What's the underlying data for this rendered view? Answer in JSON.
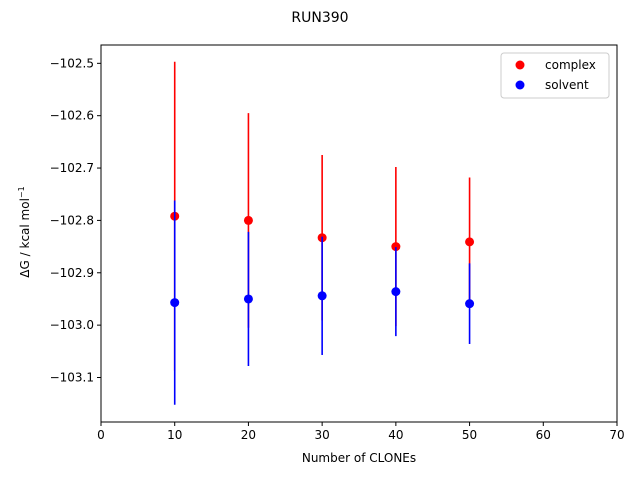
{
  "chart_data": {
    "type": "scatter",
    "title": "RUN390",
    "xlabel": "Number of CLONEs",
    "ylabel": "ΔG / kcal mol",
    "ylabel_sup": "−1",
    "xlim": [
      0,
      70
    ],
    "ylim": [
      -103.185,
      -102.465
    ],
    "xticks": [
      0,
      10,
      20,
      30,
      40,
      50,
      60,
      70
    ],
    "yticks": [
      -102.5,
      -102.6,
      -102.7,
      -102.8,
      -102.9,
      -103.0,
      -103.1
    ],
    "ytick_labels": [
      "−102.5",
      "−102.6",
      "−102.7",
      "−102.8",
      "−102.9",
      "−103.0",
      "−103.1"
    ],
    "grid": false,
    "legend_position": "top-right",
    "series": [
      {
        "name": "complex",
        "color": "#ff0000",
        "x": [
          10,
          20,
          30,
          40,
          50
        ],
        "y": [
          -102.792,
          -102.8,
          -102.833,
          -102.85,
          -102.841
        ],
        "err": [
          0.295,
          0.205,
          0.158,
          0.152,
          0.123
        ]
      },
      {
        "name": "solvent",
        "color": "#0000ff",
        "x": [
          10,
          20,
          30,
          40,
          50
        ],
        "y": [
          -102.957,
          -102.95,
          -102.944,
          -102.936,
          -102.959
        ],
        "err": [
          0.195,
          0.128,
          0.113,
          0.085,
          0.077
        ]
      }
    ]
  }
}
